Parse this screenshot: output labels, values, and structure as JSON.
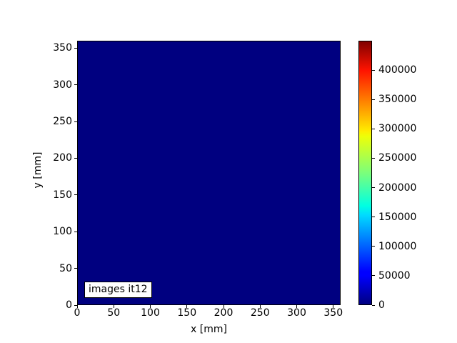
{
  "figure": {
    "background_color": "#ffffff"
  },
  "chart_data": {
    "type": "heatmap",
    "title": "",
    "xlabel": "x [mm]",
    "ylabel": "y [mm]",
    "xlim": [
      0,
      360
    ],
    "ylim": [
      0,
      360
    ],
    "xticks": [
      0,
      50,
      100,
      150,
      200,
      250,
      300,
      350
    ],
    "xtick_labels": [
      "0",
      "50",
      "100",
      "150",
      "200",
      "250",
      "300",
      "350"
    ],
    "yticks": [
      0,
      50,
      100,
      150,
      200,
      250,
      300,
      350
    ],
    "ytick_labels": [
      "0",
      "50",
      "100",
      "150",
      "200",
      "250",
      "300",
      "350"
    ],
    "grid": false,
    "legend": null,
    "annotation": "images it12",
    "uniform_value": 0,
    "uniform_fill_color": "#000080",
    "colormap": "jet",
    "colormap_stops": [
      {
        "pos": 0.0,
        "color": "#000080"
      },
      {
        "pos": 0.11,
        "color": "#0000ff"
      },
      {
        "pos": 0.125,
        "color": "#0000ff"
      },
      {
        "pos": 0.34,
        "color": "#00dbff"
      },
      {
        "pos": 0.375,
        "color": "#00ffe2"
      },
      {
        "pos": 0.5,
        "color": "#7bff7b"
      },
      {
        "pos": 0.64,
        "color": "#eeff08"
      },
      {
        "pos": 0.66,
        "color": "#ffec00"
      },
      {
        "pos": 0.89,
        "color": "#ff1300"
      },
      {
        "pos": 1.0,
        "color": "#800000"
      }
    ],
    "colorbar": {
      "orientation": "vertical",
      "position": "right",
      "min": 0,
      "max": 450000,
      "ticks": [
        0,
        50000,
        100000,
        150000,
        200000,
        250000,
        300000,
        350000,
        400000
      ],
      "tick_labels": [
        "0",
        "50000",
        "100000",
        "150000",
        "200000",
        "250000",
        "300000",
        "350000",
        "400000"
      ]
    }
  }
}
